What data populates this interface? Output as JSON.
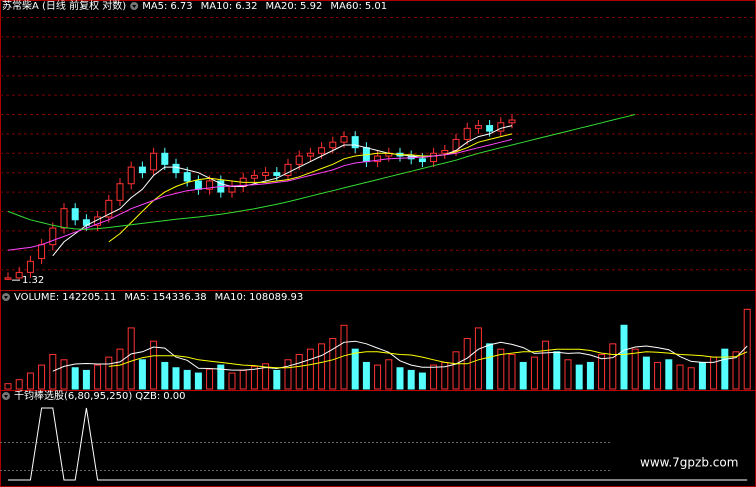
{
  "chart_data": [
    {
      "type": "candlestick",
      "title": "苏常柴A (日线 前复权 对数)",
      "ylim": [
        1.0,
        11.0
      ],
      "up_color": "#ff3232",
      "down_color": "#54ffff",
      "open": [
        1.35,
        1.4,
        1.6,
        2.1,
        2.6,
        3.2,
        3.9,
        3.5,
        3.3,
        3.6,
        4.2,
        4.8,
        5.4,
        5.3,
        5.9,
        5.5,
        5.2,
        4.9,
        4.6,
        4.9,
        4.5,
        4.7,
        5.0,
        5.1,
        5.2,
        5.1,
        5.5,
        5.8,
        5.9,
        6.1,
        6.3,
        6.5,
        6.1,
        5.6,
        5.8,
        5.9,
        5.8,
        5.7,
        5.6,
        5.9,
        6.0,
        6.4,
        6.8,
        6.9,
        6.7,
        7.0,
        null,
        null,
        null,
        null,
        null,
        null,
        null,
        null,
        null,
        null,
        null,
        null,
        null,
        null,
        null,
        null,
        null,
        null,
        null,
        null,
        null
      ],
      "high": [
        1.6,
        1.8,
        2.2,
        2.8,
        3.4,
        4.1,
        4.1,
        3.7,
        3.8,
        4.4,
        5.0,
        5.6,
        5.6,
        6.1,
        6.1,
        5.7,
        5.4,
        5.1,
        5.1,
        5.1,
        4.9,
        5.2,
        5.3,
        5.4,
        5.4,
        5.7,
        6.0,
        6.1,
        6.3,
        6.5,
        6.7,
        6.7,
        6.3,
        6.0,
        6.1,
        6.1,
        6.0,
        5.9,
        6.1,
        6.2,
        6.6,
        7.0,
        7.1,
        7.1,
        7.2,
        7.3,
        null,
        null,
        null,
        null,
        null,
        null,
        null,
        null,
        null,
        null,
        null,
        null,
        null,
        null,
        null,
        null,
        null,
        null,
        null,
        null,
        null
      ],
      "low": [
        1.32,
        1.35,
        1.4,
        1.9,
        2.4,
        3.0,
        3.3,
        3.1,
        3.1,
        3.4,
        4.0,
        4.6,
        5.0,
        5.1,
        5.3,
        5.0,
        4.7,
        4.4,
        4.4,
        4.3,
        4.3,
        4.5,
        4.8,
        4.9,
        4.9,
        4.9,
        5.3,
        5.6,
        5.7,
        5.9,
        6.1,
        5.9,
        5.4,
        5.4,
        5.6,
        5.6,
        5.5,
        5.4,
        5.4,
        5.7,
        5.8,
        6.2,
        6.6,
        6.5,
        6.5,
        6.8,
        null,
        null,
        null,
        null,
        null,
        null,
        null,
        null,
        null,
        null,
        null,
        null,
        null,
        null,
        null,
        null,
        null,
        null,
        null,
        null,
        null
      ],
      "close": [
        1.4,
        1.6,
        2.0,
        2.6,
        3.2,
        3.9,
        3.5,
        3.3,
        3.6,
        4.2,
        4.8,
        5.4,
        5.2,
        5.9,
        5.5,
        5.2,
        4.9,
        4.6,
        4.9,
        4.5,
        4.7,
        5.0,
        5.1,
        5.2,
        5.1,
        5.5,
        5.8,
        5.9,
        6.1,
        6.3,
        6.5,
        6.1,
        5.6,
        5.8,
        5.9,
        5.8,
        5.7,
        5.6,
        5.9,
        6.0,
        6.4,
        6.8,
        6.9,
        6.7,
        7.0,
        7.1,
        null,
        null,
        null,
        null,
        null,
        null,
        null,
        null,
        null,
        null,
        null,
        null,
        null,
        null,
        null,
        null,
        null,
        null,
        null,
        null,
        null
      ],
      "series": [
        {
          "name": "MA5:",
          "current": 6.73,
          "color": "#ffffff",
          "values": [
            null,
            null,
            null,
            null,
            2.2,
            2.7,
            3.0,
            3.3,
            3.5,
            3.7,
            3.9,
            4.3,
            4.6,
            5.1,
            5.4,
            5.4,
            5.3,
            5.2,
            5.0,
            4.8,
            4.7,
            4.7,
            4.8,
            4.9,
            5.0,
            5.2,
            5.4,
            5.6,
            5.8,
            6.0,
            6.2,
            6.2,
            6.1,
            6.0,
            5.9,
            5.85,
            5.8,
            5.75,
            5.8,
            5.85,
            6.0,
            6.3,
            6.5,
            6.6,
            6.8,
            6.9,
            null,
            null,
            null,
            null,
            null,
            null,
            null,
            null,
            null,
            null,
            null,
            null,
            null,
            null,
            null,
            null,
            null,
            null,
            null,
            null,
            null
          ]
        },
        {
          "name": "MA10:",
          "current": 6.32,
          "color": "#ffff00",
          "values": [
            null,
            null,
            null,
            null,
            null,
            null,
            null,
            null,
            null,
            2.7,
            3.0,
            3.4,
            3.8,
            4.2,
            4.5,
            4.7,
            4.85,
            4.95,
            5.0,
            4.95,
            4.9,
            4.85,
            4.85,
            4.85,
            4.9,
            4.95,
            5.05,
            5.2,
            5.35,
            5.5,
            5.7,
            5.8,
            5.85,
            5.9,
            5.9,
            5.85,
            5.85,
            5.8,
            5.8,
            5.85,
            5.95,
            6.1,
            6.3,
            6.4,
            6.5,
            6.6,
            null,
            null,
            null,
            null,
            null,
            null,
            null,
            null,
            null,
            null,
            null,
            null,
            null,
            null,
            null,
            null,
            null,
            null,
            null,
            null,
            null
          ]
        },
        {
          "name": "MA20:",
          "current": 5.92,
          "color": "#ff44ff",
          "values": [
            2.4,
            2.45,
            2.5,
            2.6,
            2.75,
            2.9,
            3.05,
            3.2,
            3.35,
            3.5,
            3.7,
            3.9,
            4.05,
            4.2,
            4.35,
            4.45,
            4.55,
            4.6,
            4.65,
            4.7,
            4.72,
            4.74,
            4.76,
            4.8,
            4.85,
            4.9,
            5.0,
            5.1,
            5.2,
            5.3,
            5.45,
            5.55,
            5.6,
            5.65,
            5.7,
            5.72,
            5.74,
            5.76,
            5.8,
            5.85,
            5.9,
            6.0,
            6.1,
            6.2,
            6.3,
            6.4,
            null,
            null,
            null,
            null,
            null,
            null,
            null,
            null,
            null,
            null,
            null,
            null,
            null,
            null,
            null,
            null,
            null,
            null,
            null,
            null,
            null
          ]
        },
        {
          "name": "MA60:",
          "current": 5.01,
          "color": "#33dd33",
          "values": [
            3.8,
            3.65,
            3.5,
            3.4,
            3.3,
            3.22,
            3.17,
            3.15,
            3.18,
            3.22,
            3.27,
            3.32,
            3.37,
            3.42,
            3.47,
            3.52,
            3.56,
            3.6,
            3.65,
            3.7,
            3.76,
            3.83,
            3.9,
            3.98,
            4.06,
            4.15,
            4.25,
            4.35,
            4.45,
            4.55,
            4.65,
            4.75,
            4.85,
            4.95,
            5.05,
            5.15,
            5.25,
            5.35,
            5.45,
            5.55,
            5.65,
            5.78,
            5.9,
            6.0,
            6.1,
            6.2,
            6.3,
            6.4,
            6.5,
            6.6,
            6.7,
            6.8,
            6.9,
            7.0,
            7.1,
            7.2,
            7.3,
            null,
            null,
            null,
            null,
            null,
            null,
            null,
            null,
            null,
            null
          ]
        }
      ]
    },
    {
      "type": "bar",
      "title": "VOLUME:",
      "current": 142205.11,
      "ylim": [
        0,
        320000
      ],
      "values": [
        20000,
        35000,
        60000,
        90000,
        130000,
        110000,
        80000,
        70000,
        90000,
        120000,
        150000,
        230000,
        110000,
        180000,
        100000,
        80000,
        70000,
        60000,
        75000,
        90000,
        60000,
        70000,
        85000,
        95000,
        70000,
        110000,
        130000,
        150000,
        170000,
        190000,
        240000,
        150000,
        100000,
        90000,
        110000,
        80000,
        70000,
        60000,
        90000,
        100000,
        140000,
        190000,
        230000,
        170000,
        150000,
        130000,
        100000,
        120000,
        180000,
        140000,
        110000,
        90000,
        100000,
        130000,
        170000,
        240000,
        150000,
        120000,
        100000,
        110000,
        90000,
        80000,
        100000,
        120000,
        150000,
        140000,
        300000
      ],
      "colors": [
        "#f33",
        "#f33",
        "#f33",
        "#f33",
        "#f33",
        "#f33",
        "#5ff",
        "#5ff",
        "#f33",
        "#f33",
        "#f33",
        "#f33",
        "#5ff",
        "#f33",
        "#5ff",
        "#5ff",
        "#5ff",
        "#5ff",
        "#f33",
        "#5ff",
        "#f33",
        "#f33",
        "#f33",
        "#f33",
        "#5ff",
        "#f33",
        "#f33",
        "#f33",
        "#f33",
        "#f33",
        "#f33",
        "#5ff",
        "#5ff",
        "#f33",
        "#f33",
        "#5ff",
        "#5ff",
        "#5ff",
        "#f33",
        "#f33",
        "#f33",
        "#f33",
        "#f33",
        "#5ff",
        "#f33",
        "#f33",
        "#5ff",
        "#f33",
        "#f33",
        "#5ff",
        "#f33",
        "#5ff",
        "#5ff",
        "#f33",
        "#f33",
        "#5ff",
        "#f33",
        "#5ff",
        "#f33",
        "#5ff",
        "#f33",
        "#f33",
        "#5ff",
        "#f33",
        "#5ff",
        "#f33",
        "#f33"
      ],
      "series": [
        {
          "name": "MA5:",
          "current": 154336.38,
          "color": "#ffffff",
          "values": [
            null,
            null,
            null,
            null,
            67000,
            85000,
            94000,
            96000,
            94000,
            94000,
            102000,
            132000,
            140000,
            158000,
            154000,
            120000,
            108000,
            78000,
            77000,
            75000,
            71000,
            71000,
            74000,
            81000,
            77000,
            86000,
            98000,
            112000,
            126000,
            150000,
            176000,
            180000,
            170000,
            154000,
            138000,
            106000,
            90000,
            82000,
            82000,
            84000,
            94000,
            116000,
            150000,
            166000,
            176000,
            168000,
            156000,
            134000,
            136000,
            138000,
            134000,
            136000,
            128000,
            114000,
            118000,
            146000,
            158000,
            162000,
            156000,
            148000,
            122000,
            104000,
            100000,
            100000,
            112000,
            118000,
            162000
          ]
        },
        {
          "name": "MA10:",
          "current": 108089.93,
          "color": "#ffff00",
          "values": [
            null,
            null,
            null,
            null,
            null,
            null,
            null,
            null,
            null,
            85000,
            90000,
            105000,
            118000,
            125000,
            125000,
            125000,
            120000,
            110000,
            105000,
            100000,
            95000,
            90000,
            88000,
            83000,
            80000,
            80000,
            85000,
            92000,
            100000,
            110000,
            125000,
            135000,
            140000,
            140000,
            135000,
            130000,
            128000,
            120000,
            110000,
            100000,
            95000,
            95000,
            110000,
            120000,
            130000,
            135000,
            140000,
            140000,
            145000,
            150000,
            150000,
            150000,
            145000,
            135000,
            130000,
            130000,
            135000,
            140000,
            138000,
            135000,
            130000,
            128000,
            125000,
            120000,
            120000,
            122000,
            140000
          ]
        }
      ]
    },
    {
      "type": "line",
      "title": "千钧棒选股(6,80,95,250)",
      "ylim": [
        0,
        100
      ],
      "series": [
        {
          "name": "QZB:",
          "current": {
            "value": 0,
            "label": "0.00"
          },
          "color": "#ffffff",
          "values": [
            0,
            0,
            0,
            100,
            100,
            0,
            0,
            100,
            0,
            0,
            0,
            0,
            0,
            0,
            0,
            0,
            0,
            0,
            0,
            0,
            0,
            0,
            0,
            0,
            0,
            0,
            0,
            0,
            0,
            0,
            0,
            0,
            0,
            0,
            0,
            0,
            0,
            0,
            0,
            0,
            0,
            0,
            0,
            0,
            0,
            0,
            0,
            0,
            0,
            0,
            0,
            0,
            0,
            0,
            0,
            0,
            0,
            0,
            0,
            0,
            0,
            0,
            0,
            0,
            0,
            0,
            0
          ]
        }
      ]
    }
  ],
  "watermark": "www.7gpzb.com"
}
